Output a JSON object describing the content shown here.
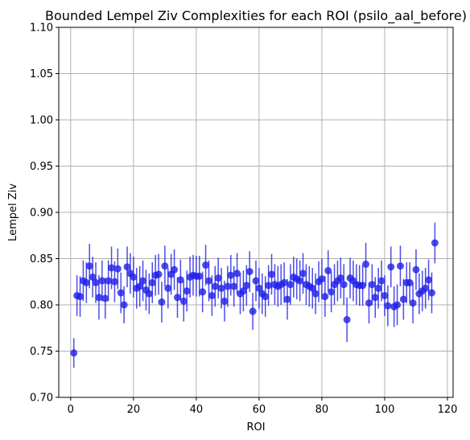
{
  "chart_data": {
    "type": "scatter",
    "title": "Bounded Lempel Ziv Complexities for each ROI (psilo_aal_before)",
    "xlabel": "ROI",
    "ylabel": "Lempel Ziv",
    "xlim": [
      -3.8,
      121.8
    ],
    "ylim": [
      0.7,
      1.1
    ],
    "xticks": [
      0,
      20,
      40,
      60,
      80,
      100,
      120
    ],
    "yticks": [
      0.7,
      0.75,
      0.8,
      0.85,
      0.9,
      0.95,
      1.0,
      1.05,
      1.1
    ],
    "ytick_labels": [
      "0.70",
      "0.75",
      "0.80",
      "0.85",
      "0.90",
      "0.95",
      "1.00",
      "1.05",
      "1.10"
    ],
    "grid": true,
    "series": [
      {
        "color": "#1f1fe8",
        "x": [
          1,
          2,
          3,
          4,
          5,
          6,
          7,
          8,
          9,
          10,
          11,
          12,
          13,
          14,
          15,
          16,
          17,
          18,
          19,
          20,
          21,
          22,
          23,
          24,
          25,
          26,
          27,
          28,
          29,
          30,
          31,
          32,
          33,
          34,
          35,
          36,
          37,
          38,
          39,
          40,
          41,
          42,
          43,
          44,
          45,
          46,
          47,
          48,
          49,
          50,
          51,
          52,
          53,
          54,
          55,
          56,
          57,
          58,
          59,
          60,
          61,
          62,
          63,
          64,
          65,
          66,
          67,
          68,
          69,
          70,
          71,
          72,
          73,
          74,
          75,
          76,
          77,
          78,
          79,
          80,
          81,
          82,
          83,
          84,
          85,
          86,
          87,
          88,
          89,
          90,
          91,
          92,
          93,
          94,
          95,
          96,
          97,
          98,
          99,
          100,
          101,
          102,
          103,
          104,
          105,
          106,
          107,
          108,
          109,
          110,
          111,
          112,
          113,
          114,
          115,
          116
        ],
        "y": [
          0.748,
          0.81,
          0.809,
          0.826,
          0.824,
          0.842,
          0.83,
          0.824,
          0.808,
          0.826,
          0.807,
          0.826,
          0.84,
          0.825,
          0.839,
          0.813,
          0.8,
          0.841,
          0.834,
          0.83,
          0.818,
          0.82,
          0.826,
          0.816,
          0.812,
          0.824,
          0.832,
          0.833,
          0.803,
          0.842,
          0.818,
          0.833,
          0.838,
          0.808,
          0.827,
          0.804,
          0.815,
          0.83,
          0.832,
          0.831,
          0.831,
          0.814,
          0.843,
          0.826,
          0.81,
          0.82,
          0.829,
          0.818,
          0.804,
          0.82,
          0.832,
          0.82,
          0.834,
          0.812,
          0.815,
          0.821,
          0.836,
          0.793,
          0.826,
          0.818,
          0.812,
          0.809,
          0.821,
          0.833,
          0.822,
          0.82,
          0.822,
          0.824,
          0.806,
          0.822,
          0.83,
          0.828,
          0.826,
          0.834,
          0.822,
          0.82,
          0.818,
          0.812,
          0.825,
          0.828,
          0.809,
          0.837,
          0.814,
          0.822,
          0.826,
          0.829,
          0.822,
          0.784,
          0.829,
          0.826,
          0.822,
          0.821,
          0.821,
          0.844,
          0.802,
          0.822,
          0.808,
          0.818,
          0.826,
          0.81,
          0.799,
          0.841,
          0.798,
          0.8,
          0.842,
          0.806,
          0.824,
          0.824,
          0.802,
          0.838,
          0.812,
          0.815,
          0.818,
          0.827,
          0.813,
          0.867
        ],
        "err": [
          0.016,
          0.022,
          0.022,
          0.022,
          0.022,
          0.024,
          0.022,
          0.022,
          0.024,
          0.022,
          0.022,
          0.022,
          0.023,
          0.022,
          0.022,
          0.022,
          0.02,
          0.022,
          0.022,
          0.022,
          0.022,
          0.022,
          0.022,
          0.022,
          0.022,
          0.022,
          0.022,
          0.022,
          0.022,
          0.022,
          0.022,
          0.022,
          0.022,
          0.022,
          0.022,
          0.022,
          0.022,
          0.022,
          0.022,
          0.022,
          0.022,
          0.022,
          0.022,
          0.022,
          0.022,
          0.022,
          0.022,
          0.022,
          0.022,
          0.022,
          0.022,
          0.022,
          0.022,
          0.022,
          0.022,
          0.022,
          0.022,
          0.02,
          0.022,
          0.022,
          0.022,
          0.022,
          0.022,
          0.022,
          0.022,
          0.022,
          0.022,
          0.022,
          0.022,
          0.022,
          0.022,
          0.022,
          0.022,
          0.022,
          0.022,
          0.022,
          0.022,
          0.022,
          0.022,
          0.022,
          0.022,
          0.022,
          0.022,
          0.022,
          0.022,
          0.022,
          0.022,
          0.024,
          0.022,
          0.022,
          0.022,
          0.022,
          0.022,
          0.023,
          0.022,
          0.022,
          0.022,
          0.022,
          0.022,
          0.022,
          0.022,
          0.022,
          0.022,
          0.022,
          0.022,
          0.022,
          0.022,
          0.022,
          0.022,
          0.022,
          0.022,
          0.022,
          0.022,
          0.022,
          0.022,
          0.022
        ]
      }
    ]
  }
}
